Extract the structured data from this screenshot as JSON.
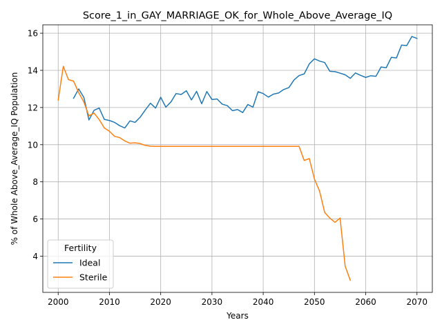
{
  "chart_data": {
    "type": "line",
    "title": "Score_1_in_GAY_MARRIAGE_OK_for_Whole_Above_Average_IQ",
    "xlabel": "Years",
    "ylabel": "% of Whole Above_Average_IQ Population",
    "xlim": [
      1997,
      2073
    ],
    "ylim": [
      2.05,
      16.45
    ],
    "xticks": [
      2000,
      2010,
      2020,
      2030,
      2040,
      2050,
      2060,
      2070
    ],
    "yticks": [
      4,
      6,
      8,
      10,
      12,
      14,
      16
    ],
    "grid": true,
    "legend": {
      "title": "Fertility",
      "placement": "lower-left"
    },
    "series": [
      {
        "name": "Ideal",
        "color": "#1f77b4",
        "x": [
          2003,
          2004,
          2005,
          2006,
          2007,
          2008,
          2009,
          2010,
          2011,
          2012,
          2013,
          2014,
          2015,
          2016,
          2017,
          2018,
          2019,
          2020,
          2021,
          2022,
          2023,
          2024,
          2025,
          2026,
          2027,
          2028,
          2029,
          2030,
          2031,
          2032,
          2033,
          2034,
          2035,
          2036,
          2037,
          2038,
          2039,
          2040,
          2041,
          2042,
          2043,
          2044,
          2045,
          2046,
          2047,
          2048,
          2049,
          2050,
          2051,
          2052,
          2053,
          2054,
          2055,
          2056,
          2057,
          2058,
          2059,
          2060,
          2061,
          2062,
          2063,
          2064,
          2065,
          2066,
          2067,
          2068,
          2069,
          2070
        ],
        "y": [
          12.5,
          13.0,
          12.55,
          11.33,
          11.85,
          11.97,
          11.36,
          11.3,
          11.2,
          11.02,
          10.9,
          11.28,
          11.2,
          11.48,
          11.87,
          12.23,
          11.97,
          12.55,
          12.02,
          12.3,
          12.75,
          12.7,
          12.9,
          12.41,
          12.87,
          12.2,
          12.86,
          12.43,
          12.46,
          12.18,
          12.1,
          11.83,
          11.89,
          11.73,
          12.16,
          12.02,
          12.85,
          12.75,
          12.56,
          12.72,
          12.78,
          12.97,
          13.07,
          13.48,
          13.72,
          13.81,
          14.35,
          14.62,
          14.5,
          14.42,
          13.95,
          13.93,
          13.85,
          13.76,
          13.57,
          13.86,
          13.73,
          13.62,
          13.71,
          13.68,
          14.18,
          14.14,
          14.7,
          14.67,
          15.36,
          15.33,
          15.82,
          15.72
        ]
      },
      {
        "name": "Sterile",
        "color": "#ff7f0e",
        "x": [
          2000,
          2001,
          2002,
          2003,
          2004,
          2005,
          2006,
          2007,
          2008,
          2009,
          2010,
          2011,
          2012,
          2013,
          2014,
          2015,
          2016,
          2017,
          2018,
          2019,
          2020,
          2021,
          2022,
          2023,
          2024,
          2025,
          2026,
          2027,
          2028,
          2029,
          2030,
          2031,
          2032,
          2033,
          2034,
          2035,
          2036,
          2037,
          2038,
          2039,
          2040,
          2041,
          2042,
          2043,
          2044,
          2045,
          2046,
          2047,
          2048,
          2049,
          2050,
          2051,
          2052,
          2053,
          2054,
          2055,
          2056,
          2057
        ],
        "y": [
          12.4,
          14.22,
          13.5,
          13.42,
          12.8,
          12.3,
          11.55,
          11.7,
          11.35,
          10.9,
          10.72,
          10.45,
          10.38,
          10.2,
          10.08,
          10.1,
          10.06,
          9.96,
          9.92,
          9.91,
          9.91,
          9.91,
          9.91,
          9.91,
          9.91,
          9.91,
          9.91,
          9.91,
          9.91,
          9.91,
          9.91,
          9.91,
          9.91,
          9.91,
          9.91,
          9.91,
          9.91,
          9.91,
          9.91,
          9.91,
          9.91,
          9.91,
          9.91,
          9.91,
          9.91,
          9.91,
          9.91,
          9.91,
          9.15,
          9.25,
          8.15,
          7.5,
          6.35,
          6.05,
          5.82,
          6.05,
          3.45,
          2.7
        ]
      }
    ]
  }
}
